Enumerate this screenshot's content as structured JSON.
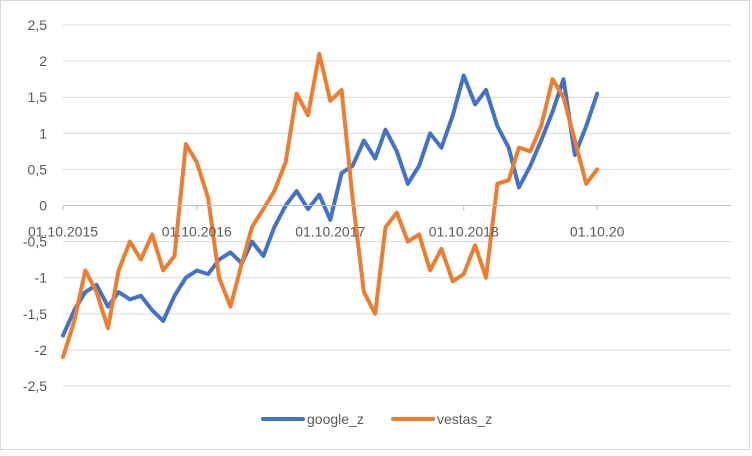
{
  "chart_data": {
    "type": "line",
    "title": "",
    "xlabel": "",
    "ylabel": "",
    "ylim": [
      -2.5,
      2.5
    ],
    "yticks": [
      "2,5",
      "2",
      "1,5",
      "1",
      "0,5",
      "0",
      "-0,5",
      "-1",
      "-1,5",
      "-2",
      "-2,5"
    ],
    "ytick_values": [
      2.5,
      2,
      1.5,
      1,
      0.5,
      0,
      -0.5,
      -1,
      -1.5,
      -2,
      -2.5
    ],
    "xlim": [
      "2015-10-01",
      "2020-10-01"
    ],
    "xticks": [
      "01.10.2015",
      "01.10.2016",
      "01.10.2017",
      "01.10.2018",
      "01.10.20"
    ],
    "xtick_values": [
      "2015-10-01",
      "2016-10-01",
      "2017-10-01",
      "2018-10-01",
      "2019-10-01"
    ],
    "grid": "horizontal",
    "legend": "bottom",
    "series": [
      {
        "name": "google_z",
        "color": "#4472C4",
        "x": [
          "2015-10-01",
          "2015-11-01",
          "2015-12-01",
          "2016-01-01",
          "2016-02-01",
          "2016-03-01",
          "2016-04-01",
          "2016-05-01",
          "2016-06-01",
          "2016-07-01",
          "2016-08-01",
          "2016-09-01",
          "2016-10-01",
          "2016-11-01",
          "2016-12-01",
          "2017-01-01",
          "2017-02-01",
          "2017-03-01",
          "2017-04-01",
          "2017-05-01",
          "2017-06-01",
          "2017-07-01",
          "2017-08-01",
          "2017-09-01",
          "2017-10-01",
          "2017-11-01",
          "2017-12-01",
          "2018-01-01",
          "2018-02-01",
          "2018-03-01",
          "2018-04-01",
          "2018-05-01",
          "2018-06-01",
          "2018-07-01",
          "2018-08-01",
          "2018-09-01",
          "2018-10-01",
          "2018-11-01",
          "2018-12-01",
          "2019-01-01",
          "2019-02-01",
          "2019-03-01",
          "2019-04-01",
          "2019-05-01",
          "2019-06-01",
          "2019-07-01",
          "2019-08-01",
          "2019-09-01",
          "2019-10-01"
        ],
        "values": [
          -1.8,
          -1.45,
          -1.2,
          -1.1,
          -1.4,
          -1.2,
          -1.3,
          -1.25,
          -1.45,
          -1.6,
          -1.25,
          -1.0,
          -0.9,
          -0.95,
          -0.75,
          -0.65,
          -0.8,
          -0.5,
          -0.7,
          -0.3,
          0.0,
          0.2,
          -0.05,
          0.15,
          -0.2,
          0.45,
          0.55,
          0.9,
          0.65,
          1.05,
          0.75,
          0.3,
          0.55,
          1.0,
          0.8,
          1.25,
          1.8,
          1.4,
          1.6,
          1.1,
          0.8,
          0.25,
          0.55,
          0.9,
          1.3,
          1.75,
          0.7,
          1.1,
          1.55
        ]
      },
      {
        "name": "vestas_z",
        "color": "#ED7D31",
        "x": [
          "2015-10-01",
          "2015-11-01",
          "2015-12-01",
          "2016-01-01",
          "2016-02-01",
          "2016-03-01",
          "2016-04-01",
          "2016-05-01",
          "2016-06-01",
          "2016-07-01",
          "2016-08-01",
          "2016-09-01",
          "2016-10-01",
          "2016-11-01",
          "2016-12-01",
          "2017-01-01",
          "2017-02-01",
          "2017-03-01",
          "2017-04-01",
          "2017-05-01",
          "2017-06-01",
          "2017-07-01",
          "2017-08-01",
          "2017-09-01",
          "2017-10-01",
          "2017-11-01",
          "2017-12-01",
          "2018-01-01",
          "2018-02-01",
          "2018-03-01",
          "2018-04-01",
          "2018-05-01",
          "2018-06-01",
          "2018-07-01",
          "2018-08-01",
          "2018-09-01",
          "2018-10-01",
          "2018-11-01",
          "2018-12-01",
          "2019-01-01",
          "2019-02-01",
          "2019-03-01",
          "2019-04-01",
          "2019-05-01",
          "2019-06-01",
          "2019-07-01",
          "2019-08-01",
          "2019-09-01",
          "2019-10-01"
        ],
        "values": [
          -2.1,
          -1.6,
          -0.9,
          -1.2,
          -1.7,
          -0.9,
          -0.5,
          -0.75,
          -0.4,
          -0.9,
          -0.7,
          0.85,
          0.6,
          0.1,
          -1.0,
          -1.4,
          -0.8,
          -0.3,
          -0.05,
          0.2,
          0.6,
          1.55,
          1.25,
          2.1,
          1.45,
          1.6,
          0.1,
          -1.2,
          -1.5,
          -0.3,
          -0.1,
          -0.5,
          -0.4,
          -0.9,
          -0.6,
          -1.05,
          -0.95,
          -0.55,
          -1.0,
          0.3,
          0.35,
          0.8,
          0.75,
          1.1,
          1.75,
          1.5,
          0.9,
          0.3,
          0.5
        ]
      }
    ]
  }
}
